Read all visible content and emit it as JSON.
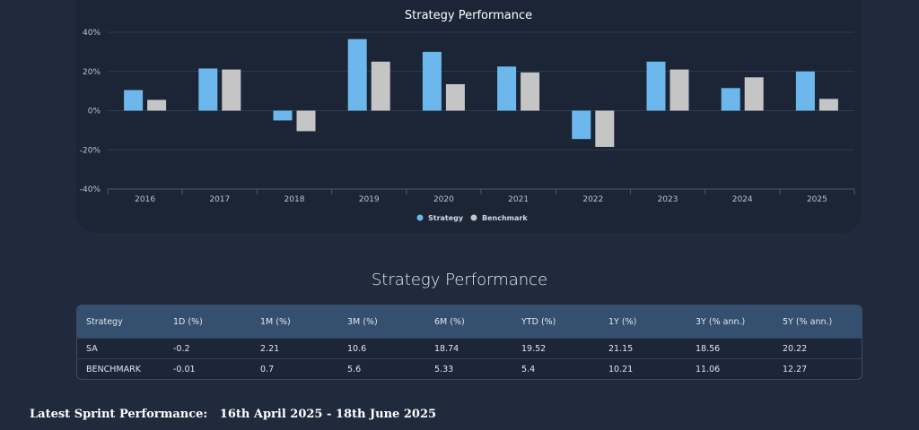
{
  "chart_data": {
    "type": "bar",
    "title": "Strategy Performance",
    "categories": [
      "2016",
      "2017",
      "2018",
      "2019",
      "2020",
      "2021",
      "2022",
      "2023",
      "2024",
      "2025"
    ],
    "series": [
      {
        "name": "Strategy",
        "color": "#6cb8ec",
        "values": [
          10.5,
          21.5,
          -5,
          36.5,
          30,
          22.5,
          -14.5,
          25,
          11.5,
          20
        ]
      },
      {
        "name": "Benchmark",
        "color": "#c5c5c5",
        "values": [
          5.5,
          21,
          -10.5,
          25,
          13.5,
          19.5,
          -18.5,
          21,
          17,
          6
        ]
      }
    ],
    "ylim": [
      -40,
      40
    ],
    "yticks": [
      40,
      20,
      0,
      -20,
      -40
    ],
    "ytick_labels": [
      "40%",
      "20%",
      "0%",
      "-20%",
      "-40%"
    ],
    "grid": true,
    "legend": "bottom-center"
  },
  "table": {
    "title": "Strategy Performance",
    "headers": [
      "Strategy",
      "1D (%)",
      "1M (%)",
      "3M (%)",
      "6M (%)",
      "YTD (%)",
      "1Y (%)",
      "3Y (% ann.)",
      "5Y (% ann.)"
    ],
    "rows": [
      [
        "SA",
        "-0.2",
        "2.21",
        "10.6",
        "18.74",
        "19.52",
        "21.15",
        "18.56",
        "20.22"
      ],
      [
        "BENCHMARK",
        "-0.01",
        "0.7",
        "5.6",
        "5.33",
        "5.4",
        "10.21",
        "11.06",
        "12.27"
      ]
    ]
  },
  "footer": {
    "sprint_label": "Latest Sprint Performance:",
    "sprint_range": "16th April 2025 - 18th June 2025"
  }
}
